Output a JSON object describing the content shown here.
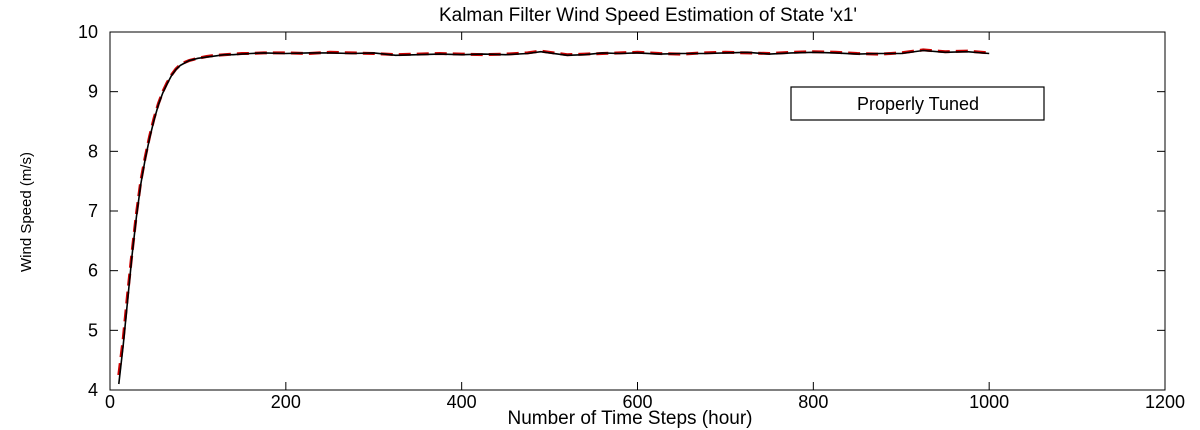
{
  "chart_data": {
    "type": "line",
    "title": "Kalman Filter Wind Speed Estimation of State 'x1'",
    "xlabel": "Number of Time Steps (hour)",
    "ylabel": "Wind Speed (m/s)",
    "xlim": [
      0,
      1200
    ],
    "ylim": [
      4,
      10
    ],
    "xticks": [
      0,
      200,
      400,
      600,
      800,
      1000,
      1200
    ],
    "yticks": [
      4,
      5,
      6,
      7,
      8,
      9,
      10
    ],
    "grid": false,
    "annotation": "Properly Tuned",
    "series": [
      {
        "color": "#cc0000",
        "style": "dashed",
        "x": [
          10,
          15,
          20,
          25,
          30,
          35,
          40,
          45,
          50,
          55,
          60,
          65,
          70,
          75,
          80,
          85,
          90,
          100,
          110,
          120,
          130,
          140,
          150,
          160,
          175,
          200,
          225,
          250,
          275,
          300,
          325,
          350,
          375,
          400,
          425,
          450,
          475,
          490,
          500,
          520,
          540,
          560,
          580,
          600,
          625,
          650,
          675,
          700,
          725,
          750,
          775,
          800,
          825,
          850,
          875,
          900,
          925,
          950,
          975,
          1000
        ],
        "y": [
          4.25,
          4.85,
          5.6,
          6.3,
          6.95,
          7.5,
          7.9,
          8.25,
          8.55,
          8.8,
          9.0,
          9.15,
          9.28,
          9.38,
          9.45,
          9.49,
          9.52,
          9.56,
          9.59,
          9.61,
          9.62,
          9.63,
          9.64,
          9.64,
          9.65,
          9.65,
          9.64,
          9.66,
          9.65,
          9.64,
          9.62,
          9.63,
          9.64,
          9.63,
          9.62,
          9.63,
          9.65,
          9.68,
          9.66,
          9.62,
          9.63,
          9.64,
          9.65,
          9.66,
          9.64,
          9.63,
          9.65,
          9.66,
          9.65,
          9.64,
          9.66,
          9.67,
          9.66,
          9.64,
          9.63,
          9.65,
          9.7,
          9.67,
          9.68,
          9.65
        ]
      },
      {
        "color": "#000000",
        "style": "solid",
        "x": [
          10,
          15,
          20,
          25,
          30,
          35,
          40,
          45,
          50,
          55,
          60,
          65,
          70,
          75,
          80,
          85,
          90,
          100,
          110,
          120,
          130,
          140,
          150,
          160,
          175,
          200,
          225,
          250,
          275,
          300,
          325,
          350,
          375,
          400,
          425,
          450,
          475,
          490,
          500,
          520,
          540,
          560,
          580,
          600,
          625,
          650,
          675,
          700,
          725,
          750,
          775,
          800,
          825,
          850,
          875,
          900,
          925,
          950,
          975,
          1000
        ],
        "y": [
          4.1,
          4.75,
          5.5,
          6.25,
          6.9,
          7.45,
          7.87,
          8.22,
          8.52,
          8.78,
          8.98,
          9.13,
          9.27,
          9.37,
          9.44,
          9.48,
          9.52,
          9.56,
          9.58,
          9.6,
          9.62,
          9.62,
          9.63,
          9.64,
          9.65,
          9.64,
          9.65,
          9.65,
          9.64,
          9.65,
          9.61,
          9.62,
          9.63,
          9.62,
          9.63,
          9.62,
          9.64,
          9.67,
          9.65,
          9.61,
          9.62,
          9.65,
          9.64,
          9.65,
          9.63,
          9.64,
          9.64,
          9.65,
          9.66,
          9.63,
          9.65,
          9.66,
          9.65,
          9.63,
          9.64,
          9.64,
          9.69,
          9.66,
          9.67,
          9.64
        ]
      }
    ]
  }
}
